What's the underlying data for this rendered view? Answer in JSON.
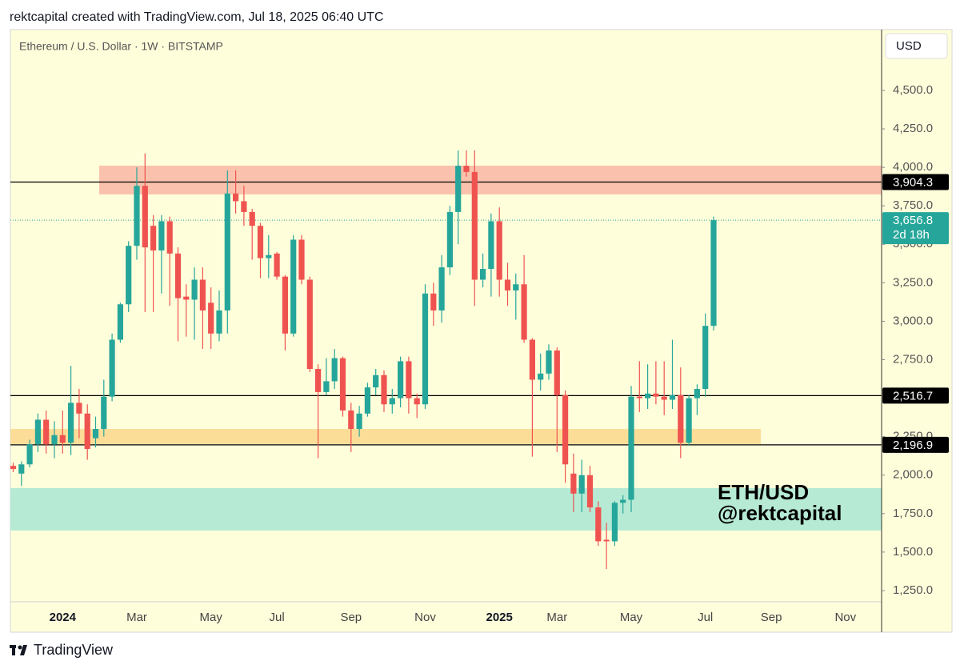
{
  "header": {
    "title": "rektcapital created with TradingView.com, Jul 18, 2025 06:40 UTC"
  },
  "chart_data": {
    "type": "candlestick",
    "title": "Ethereum / U.S. Dollar · 1W · BITSTAMP",
    "currency": "USD",
    "categories": [
      null,
      null,
      null,
      null,
      null,
      null,
      "2024",
      null,
      null,
      null,
      null,
      null,
      null,
      null,
      null,
      "Mar",
      null,
      null,
      null,
      null,
      null,
      null,
      null,
      null,
      "May",
      null,
      null,
      null,
      null,
      null,
      null,
      null,
      "Jul",
      null,
      null,
      null,
      null,
      null,
      null,
      null,
      null,
      "Sep",
      null,
      null,
      null,
      null,
      null,
      null,
      null,
      null,
      "Nov",
      null,
      null,
      null,
      null,
      null,
      null,
      null,
      null,
      "2025",
      null,
      null,
      null,
      null,
      null,
      null,
      "Mar",
      null,
      null,
      null,
      null,
      null,
      null,
      null,
      null,
      "May",
      null,
      null,
      null,
      null,
      null,
      null,
      null,
      null,
      "Jul",
      null,
      null,
      null,
      null,
      null,
      null,
      null,
      "Sep",
      null,
      null,
      null,
      null,
      null,
      null,
      null,
      null,
      "Nov",
      null,
      null,
      null,
      null
    ],
    "open": [
      2060,
      2010,
      2070,
      2200,
      2360,
      2200,
      2260,
      2210,
      2470,
      2400,
      2240,
      2300,
      2510,
      2880,
      3110,
      3490,
      3880,
      3620,
      3460,
      3650,
      3440,
      3160,
      3140,
      3270,
      3120,
      2920,
      3070,
      3830,
      3780,
      3710,
      3620,
      3410,
      3440,
      3290,
      2920,
      3530,
      3270,
      2690,
      2540,
      2610,
      2760,
      2420,
      2300,
      2400,
      2570,
      2650,
      2460,
      2500,
      2740,
      2500,
      2460,
      3180,
      3070,
      3350,
      3710,
      4010,
      3970,
      3270,
      3340,
      3650,
      3270,
      3200,
      3240,
      2880,
      2620,
      2660,
      2810,
      2520,
      2010,
      1880,
      2000,
      1790,
      1580,
      1570,
      1820,
      1840,
      2510,
      2500,
      2530,
      2510,
      2490,
      2520,
      2210,
      2500,
      2560,
      2970,
      null,
      null,
      null,
      null,
      null,
      null,
      null,
      null,
      null,
      null,
      null,
      null,
      null,
      null,
      null,
      null,
      null,
      null,
      null,
      null
    ],
    "high": [
      2080,
      2090,
      2230,
      2400,
      2420,
      2350,
      2420,
      2710,
      2560,
      2460,
      2380,
      2620,
      2920,
      3120,
      3520,
      4000,
      4090,
      3690,
      3690,
      3680,
      3480,
      3240,
      3350,
      3350,
      3220,
      3200,
      3980,
      3980,
      3880,
      3730,
      3640,
      3560,
      3450,
      3300,
      3560,
      3560,
      3290,
      2720,
      2760,
      2820,
      2770,
      2470,
      2450,
      2600,
      2690,
      2680,
      2560,
      2770,
      2770,
      2530,
      3240,
      3250,
      3430,
      3750,
      4110,
      4110,
      4110,
      3440,
      3700,
      3740,
      3380,
      3310,
      3430,
      2890,
      2790,
      2850,
      2830,
      2550,
      2140,
      2100,
      2060,
      1830,
      1690,
      1830,
      1870,
      2580,
      2740,
      2720,
      2740,
      2740,
      2880,
      2700,
      2520,
      2590,
      3050,
      3680,
      null,
      null,
      null,
      null,
      null,
      null,
      null,
      null,
      null,
      null,
      null,
      null,
      null,
      null,
      null,
      null,
      null,
      null,
      null,
      null
    ],
    "low": [
      2020,
      1930,
      2050,
      2150,
      2140,
      2110,
      2140,
      2130,
      2240,
      2100,
      2180,
      2250,
      2480,
      2860,
      3060,
      3400,
      3060,
      3060,
      3180,
      3100,
      2870,
      2900,
      2880,
      2820,
      2820,
      2870,
      2920,
      3700,
      3620,
      3400,
      3280,
      3280,
      3270,
      2810,
      2900,
      3240,
      2670,
      2110,
      2520,
      2560,
      2380,
      2150,
      2250,
      2380,
      2520,
      2410,
      2400,
      2440,
      2400,
      2370,
      2430,
      2970,
      2990,
      3300,
      3500,
      3940,
      3100,
      3220,
      3160,
      3160,
      3100,
      3010,
      2860,
      2120,
      2550,
      2620,
      2150,
      1950,
      1760,
      1760,
      1760,
      1540,
      1390,
      1540,
      1750,
      1760,
      2410,
      2430,
      2460,
      2390,
      2430,
      2110,
      2190,
      2390,
      2510,
      2940,
      null,
      null,
      null,
      null,
      null,
      null,
      null,
      null,
      null,
      null,
      null,
      null,
      null,
      null,
      null,
      null,
      null,
      null,
      null,
      null
    ],
    "close": [
      2040,
      2070,
      2200,
      2360,
      2200,
      2260,
      2210,
      2470,
      2400,
      2170,
      2300,
      2510,
      2880,
      3110,
      3490,
      3880,
      3480,
      3460,
      3650,
      3440,
      3150,
      3140,
      3270,
      3070,
      2920,
      3070,
      3830,
      3780,
      3710,
      3620,
      3410,
      3430,
      3290,
      2920,
      3530,
      3270,
      2690,
      2540,
      2610,
      2760,
      2420,
      2300,
      2400,
      2570,
      2650,
      2460,
      2500,
      2740,
      2500,
      2460,
      3180,
      3070,
      3350,
      3710,
      4010,
      3970,
      3270,
      3340,
      3650,
      3270,
      3200,
      3240,
      2880,
      2620,
      2660,
      2810,
      2520,
      2070,
      1880,
      2000,
      1790,
      1570,
      1570,
      1820,
      1840,
      2510,
      2500,
      2530,
      2510,
      2490,
      2520,
      2210,
      2500,
      2560,
      2970,
      3656.8,
      null,
      null,
      null,
      null,
      null,
      null,
      null,
      null,
      null,
      null,
      null,
      null,
      null,
      null,
      null,
      null,
      null,
      null,
      null,
      null
    ],
    "up_color": "#26a69a",
    "down_color": "#ef5350",
    "ylim": [
      1177,
      4895
    ],
    "yticks": [
      {
        "value": 1250,
        "label": "1,250.0"
      },
      {
        "value": 1500,
        "label": "1,500.0"
      },
      {
        "value": 1750,
        "label": "1,750.0"
      },
      {
        "value": 2000,
        "label": "2,000.0"
      },
      {
        "value": 2250,
        "label": "2,250.0"
      },
      {
        "value": 2500,
        "label": "2,500.0"
      },
      {
        "value": 2750,
        "label": "2,750.0"
      },
      {
        "value": 3000,
        "label": "3,000.0"
      },
      {
        "value": 3250,
        "label": "3,250.0"
      },
      {
        "value": 3500,
        "label": "3,500.0"
      },
      {
        "value": 3750,
        "label": "3,750.0"
      },
      {
        "value": 4000,
        "label": "4,000.0"
      },
      {
        "value": 4250,
        "label": "4,250.0"
      },
      {
        "value": 4500,
        "label": "4,500.0"
      }
    ],
    "grid": false,
    "zones": [
      {
        "low": 3824,
        "high": 4011,
        "color": "#f9bba6"
      },
      {
        "low": 2202,
        "high": 2300,
        "color": "#fcd98f"
      },
      {
        "low": 1640,
        "high": 1916,
        "color": "#aee8d4"
      }
    ],
    "levels": [
      {
        "value": 3904.3,
        "label": "3,904.3"
      },
      {
        "value": 2516.7,
        "label": "2,516.7"
      },
      {
        "value": 2196.9,
        "label": "2,196.9"
      }
    ],
    "level_color": "#000000",
    "last_price": {
      "value": 3656.8,
      "label": "3,656.8"
    },
    "countdown": "2d 18h",
    "annotations": [
      "ETH/USD",
      "@rektcapital"
    ]
  },
  "footer": {
    "brand": "TradingView"
  }
}
